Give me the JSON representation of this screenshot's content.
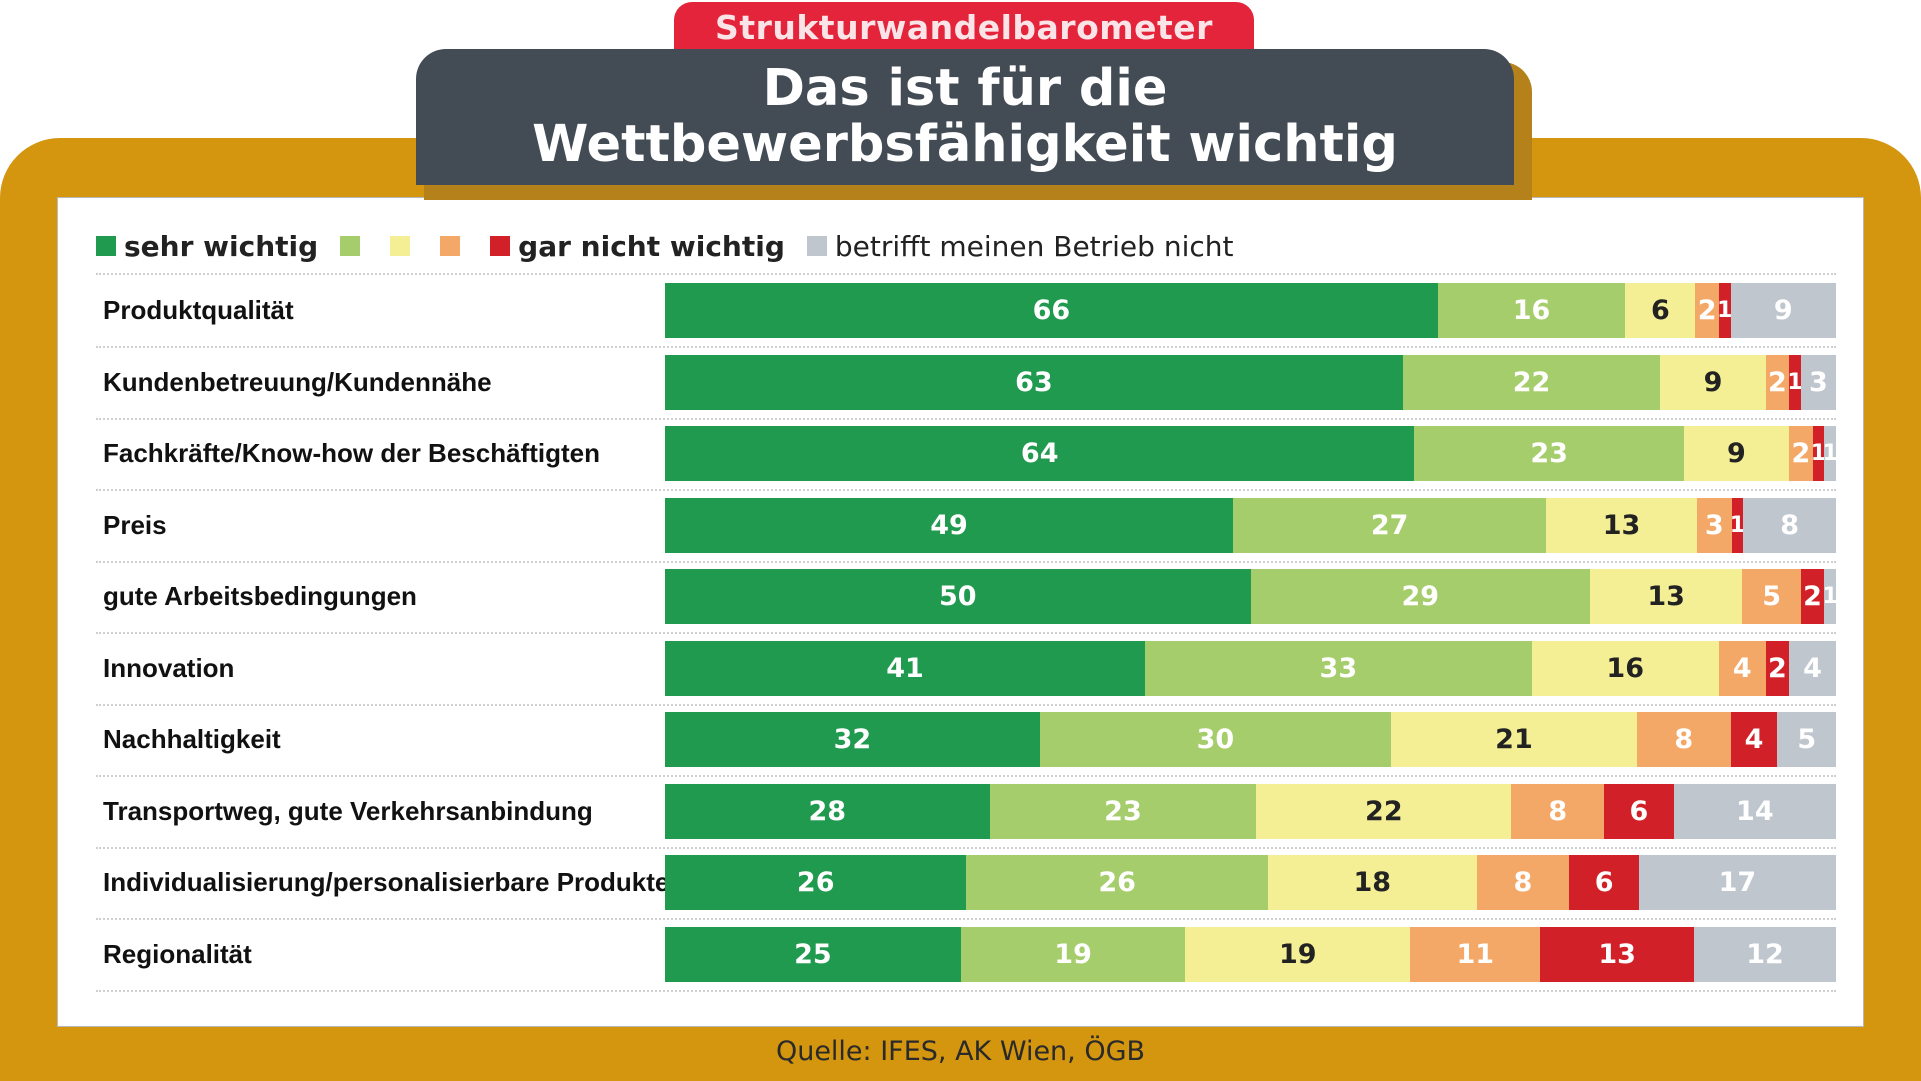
{
  "header": {
    "tag": "Strukturwandelbarometer",
    "title_line1": "Das ist für die",
    "title_line2": "Wettbewerbsfähigkeit wichtig"
  },
  "legend": [
    {
      "label": "sehr wichtig",
      "color": "#1f9a4e"
    },
    {
      "label": "",
      "color": "#a6cd6c"
    },
    {
      "label": "",
      "color": "#f4ef95"
    },
    {
      "label": "",
      "color": "#f4a867"
    },
    {
      "label": "gar nicht wichtig",
      "color": "#d12027"
    },
    {
      "label": "betrifft meinen Betrieb nicht",
      "color": "#bfc6cd"
    }
  ],
  "chart_data": {
    "type": "bar",
    "orientation": "horizontal",
    "stacked": true,
    "categories": [
      "Produktqualität",
      "Kundenbetreuung/Kundennähe",
      "Fachkräfte/Know-how der Beschäftigten",
      "Preis",
      "gute Arbeitsbedingungen",
      "Innovation",
      "Nachhaltigkeit",
      "Transportweg, gute Verkehrsanbindung",
      "Individualisierung/personalisierbare Produkte",
      "Regionalität"
    ],
    "series": [
      {
        "name": "sehr wichtig",
        "color": "#1f9a4e",
        "values": [
          66,
          63,
          64,
          49,
          50,
          41,
          32,
          28,
          26,
          25
        ]
      },
      {
        "name": "",
        "color": "#a6cd6c",
        "values": [
          16,
          22,
          23,
          27,
          29,
          33,
          30,
          23,
          26,
          19
        ]
      },
      {
        "name": "",
        "color": "#f4ef95",
        "values": [
          6,
          9,
          9,
          13,
          13,
          16,
          21,
          22,
          18,
          19
        ]
      },
      {
        "name": "",
        "color": "#f4a867",
        "values": [
          2,
          2,
          2,
          3,
          5,
          4,
          8,
          8,
          8,
          11
        ]
      },
      {
        "name": "gar nicht wichtig",
        "color": "#d12027",
        "values": [
          1,
          1,
          1,
          1,
          2,
          2,
          4,
          6,
          6,
          13
        ]
      },
      {
        "name": "betrifft meinen Betrieb nicht",
        "color": "#bfc6cd",
        "values": [
          9,
          3,
          1,
          8,
          1,
          4,
          5,
          14,
          17,
          12
        ]
      }
    ],
    "label_colors": [
      "#ffffff",
      "#ffffff",
      "#222222",
      "#ffffff",
      "#ffffff",
      "#ffffff"
    ]
  },
  "footer": {
    "source": "Quelle: IFES, AK Wien, ÖGB"
  }
}
